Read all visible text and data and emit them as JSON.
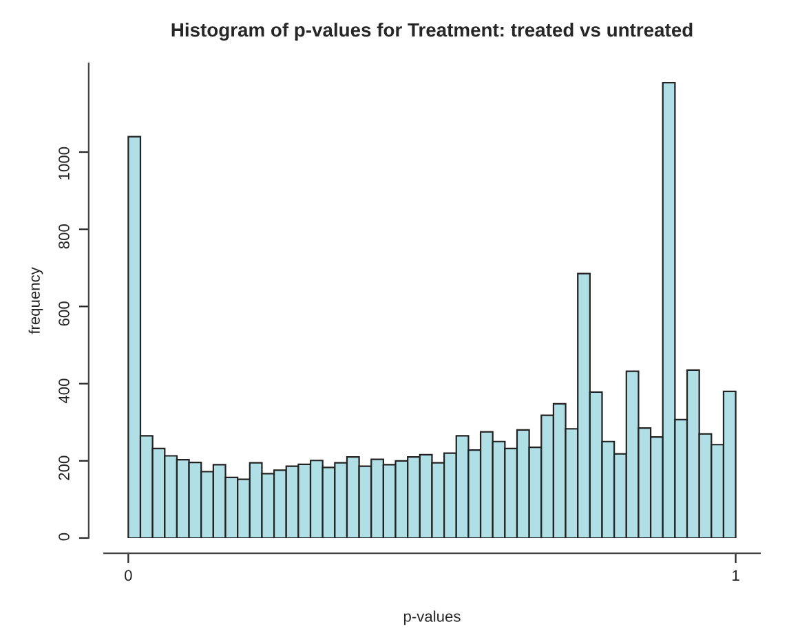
{
  "chart_data": {
    "type": "histogram",
    "title": "Histogram of p-values for Treatment: treated vs untreated",
    "xlabel": "p-values",
    "ylabel": "frequency",
    "bins": [
      0,
      0.02,
      0.04,
      0.06,
      0.08,
      0.1,
      0.12,
      0.14,
      0.16,
      0.18,
      0.2,
      0.22,
      0.24,
      0.26,
      0.28,
      0.3,
      0.32,
      0.34,
      0.36,
      0.38,
      0.4,
      0.42,
      0.44,
      0.46,
      0.48,
      0.5,
      0.52,
      0.54,
      0.56,
      0.58,
      0.6,
      0.62,
      0.64,
      0.66,
      0.68,
      0.7,
      0.72,
      0.74,
      0.76,
      0.78,
      0.8,
      0.82,
      0.84,
      0.86,
      0.88,
      0.9,
      0.92,
      0.94,
      0.96,
      0.98,
      1
    ],
    "values": [
      1040,
      265,
      232,
      213,
      203,
      196,
      172,
      190,
      157,
      152,
      195,
      167,
      176,
      186,
      191,
      201,
      183,
      195,
      210,
      186,
      204,
      190,
      200,
      210,
      216,
      195,
      220,
      265,
      228,
      275,
      250,
      232,
      280,
      235,
      318,
      348,
      283,
      685,
      378,
      250,
      218,
      432,
      285,
      262,
      1180,
      307,
      435,
      270,
      242,
      380
    ],
    "color": "#b0dfe5",
    "xlim": [
      -0.04,
      1.04
    ],
    "ylim": [
      0,
      1230
    ],
    "xticks": [
      0,
      1
    ],
    "yticks": [
      0,
      200,
      400,
      600,
      800,
      1000
    ],
    "grid": false
  }
}
